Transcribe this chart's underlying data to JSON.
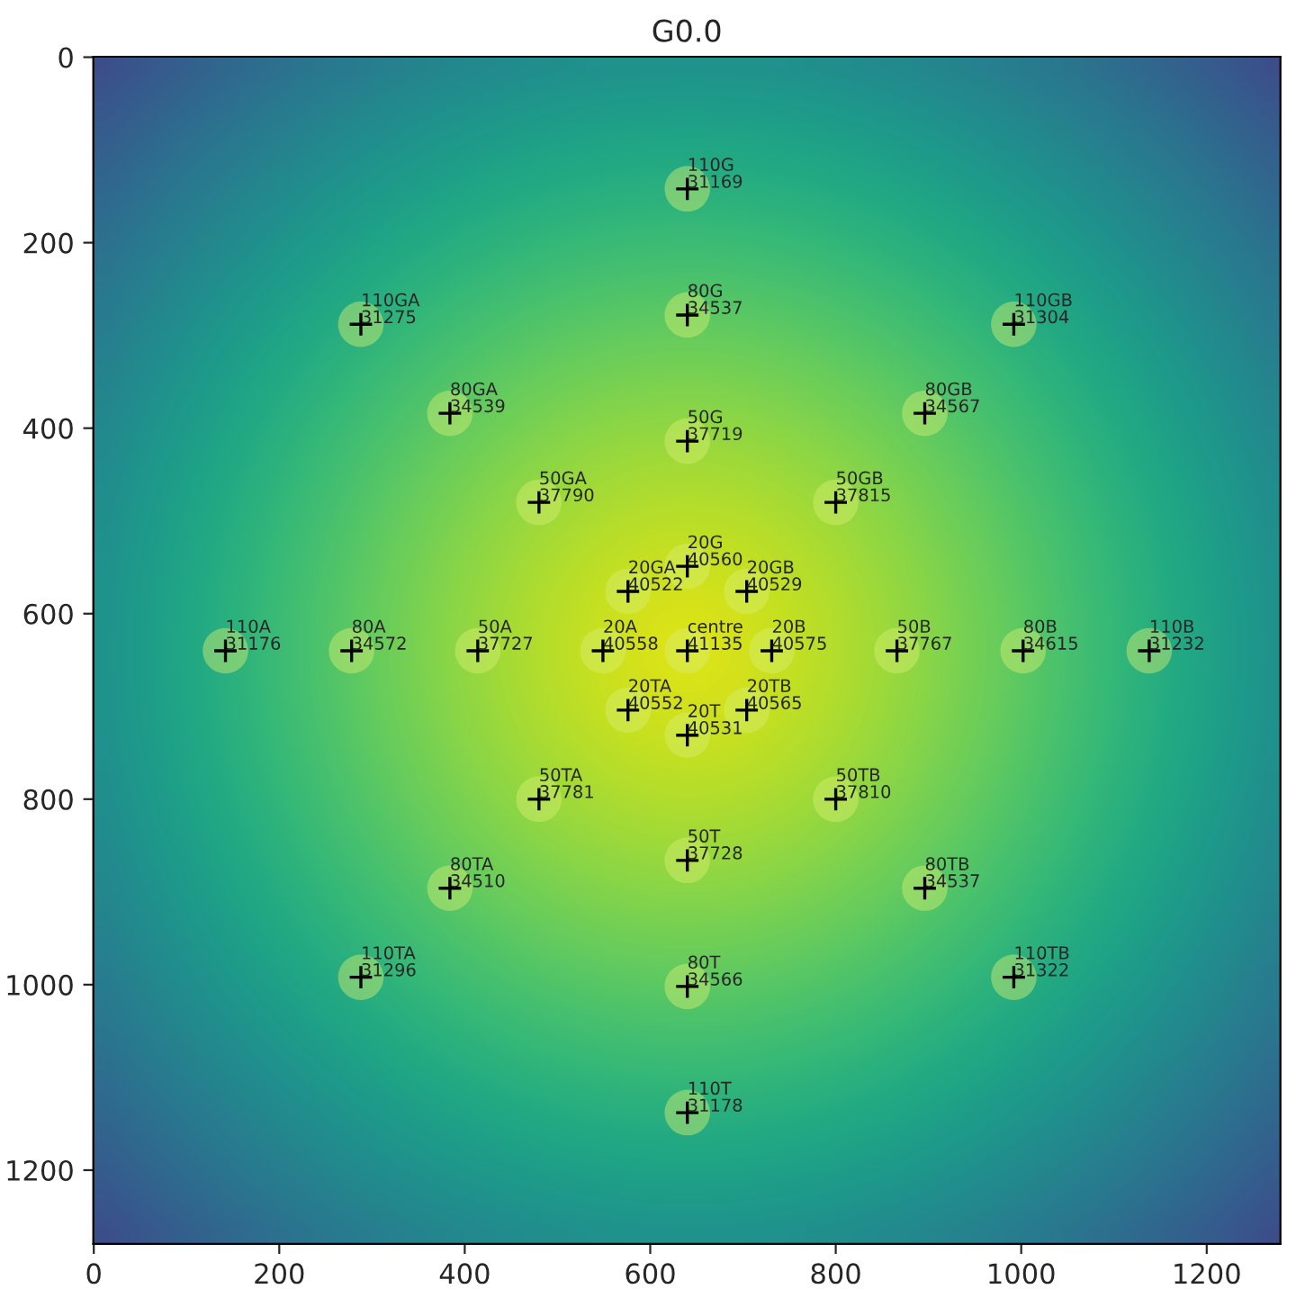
{
  "chart_data": {
    "type": "scatter",
    "title": "G0.0",
    "marker": "cross",
    "grid": false,
    "xlim": [
      -0.5,
      1279.5
    ],
    "ylim": [
      1279.5,
      -0.5
    ],
    "xticks": [
      0,
      200,
      400,
      600,
      800,
      1000,
      1200
    ],
    "yticks": [
      0,
      200,
      400,
      600,
      800,
      1000,
      1200
    ],
    "series": [
      {
        "color": "#000000",
        "x": [
          640,
          640,
          576,
          704,
          549,
          731,
          576,
          640,
          704,
          640,
          480,
          800,
          414,
          866,
          480,
          640,
          800,
          640,
          384,
          896,
          278,
          1002,
          384,
          640,
          896,
          640,
          288,
          992,
          142,
          1138,
          288,
          640,
          992
        ],
        "values": [
          640,
          549,
          576,
          576,
          640,
          640,
          704,
          731,
          704,
          414,
          480,
          480,
          640,
          640,
          800,
          866,
          800,
          278,
          384,
          384,
          640,
          640,
          896,
          1002,
          896,
          142,
          288,
          288,
          640,
          640,
          992,
          1138,
          992
        ]
      }
    ],
    "annotations": [
      {
        "text": "centre\n41135",
        "x": 640,
        "y": 640
      },
      {
        "text": "20G\n40560",
        "x": 640,
        "y": 549
      },
      {
        "text": "20GA\n40522",
        "x": 576,
        "y": 576
      },
      {
        "text": "20GB\n40529",
        "x": 704,
        "y": 576
      },
      {
        "text": "20A\n40558",
        "x": 549,
        "y": 640
      },
      {
        "text": "20B\n40575",
        "x": 731,
        "y": 640
      },
      {
        "text": "20TA\n40552",
        "x": 576,
        "y": 704
      },
      {
        "text": "20T\n40531",
        "x": 640,
        "y": 731
      },
      {
        "text": "20TB\n40565",
        "x": 704,
        "y": 704
      },
      {
        "text": "50G\n37719",
        "x": 640,
        "y": 414
      },
      {
        "text": "50GA\n37790",
        "x": 480,
        "y": 480
      },
      {
        "text": "50GB\n37815",
        "x": 800,
        "y": 480
      },
      {
        "text": "50A\n37727",
        "x": 414,
        "y": 640
      },
      {
        "text": "50B\n37767",
        "x": 866,
        "y": 640
      },
      {
        "text": "50TA\n37781",
        "x": 480,
        "y": 800
      },
      {
        "text": "50T\n37728",
        "x": 640,
        "y": 866
      },
      {
        "text": "50TB\n37810",
        "x": 800,
        "y": 800
      },
      {
        "text": "80G\n34537",
        "x": 640,
        "y": 278
      },
      {
        "text": "80GA\n34539",
        "x": 384,
        "y": 384
      },
      {
        "text": "80GB\n34567",
        "x": 896,
        "y": 384
      },
      {
        "text": "80A\n34572",
        "x": 278,
        "y": 640
      },
      {
        "text": "80B\n34615",
        "x": 1002,
        "y": 640
      },
      {
        "text": "80TA\n34510",
        "x": 384,
        "y": 896
      },
      {
        "text": "80T\n34566",
        "x": 640,
        "y": 1002
      },
      {
        "text": "80TB\n34537",
        "x": 896,
        "y": 896
      },
      {
        "text": "110G\n31169",
        "x": 640,
        "y": 142
      },
      {
        "text": "110GA\n31275",
        "x": 288,
        "y": 288
      },
      {
        "text": "110GB\n31304",
        "x": 992,
        "y": 288
      },
      {
        "text": "110A\n31176",
        "x": 142,
        "y": 640
      },
      {
        "text": "110B\n31232",
        "x": 1138,
        "y": 640
      },
      {
        "text": "110TA\n31296",
        "x": 288,
        "y": 992
      },
      {
        "text": "110T\n31178",
        "x": 640,
        "y": 1138
      },
      {
        "text": "110TB\n31322",
        "x": 992,
        "y": 992
      }
    ]
  }
}
